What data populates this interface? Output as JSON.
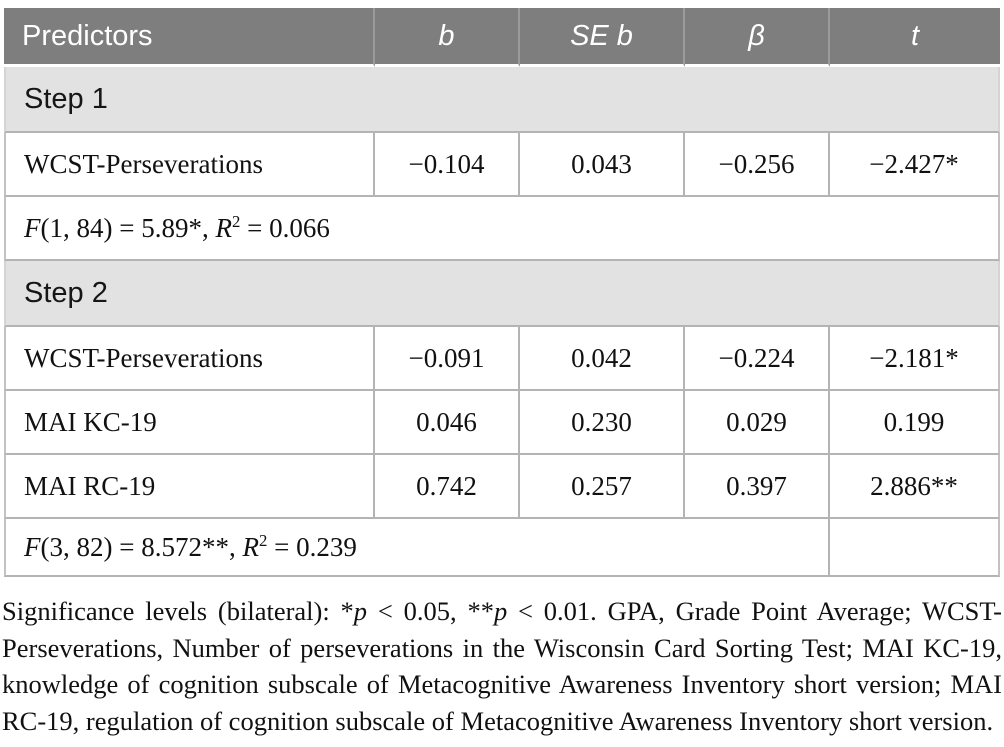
{
  "table": {
    "columns": [
      {
        "label": "Predictors"
      },
      {
        "label": "b"
      },
      {
        "label": "SE b"
      },
      {
        "label": "β"
      },
      {
        "label": "t"
      }
    ],
    "sections": [
      {
        "title": "Step 1",
        "rows": [
          {
            "predictor": "WCST-Perseverations",
            "b": "−0.104",
            "se_b": "0.043",
            "beta": "−0.256",
            "t": "−2.427*"
          }
        ],
        "model_fit": [
          {
            "t": "F",
            "i": true
          },
          {
            "t": "(1, 84) = 5.89*, "
          },
          {
            "t": "R",
            "i": true
          },
          {
            "t": "2",
            "sup": true
          },
          {
            "t": " = 0.066"
          }
        ]
      },
      {
        "title": "Step 2",
        "rows": [
          {
            "predictor": "WCST-Perseverations",
            "b": "−0.091",
            "se_b": "0.042",
            "beta": "−0.224",
            "t": "−2.181*"
          },
          {
            "predictor": "MAI KC-19",
            "b": "0.046",
            "se_b": "0.230",
            "beta": "0.029",
            "t": "0.199"
          },
          {
            "predictor": "MAI RC-19",
            "b": "0.742",
            "se_b": "0.257",
            "beta": "0.397",
            "t": "2.886**"
          }
        ],
        "model_fit": [
          {
            "t": "F",
            "i": true
          },
          {
            "t": "(3, 82) = 8.572**, "
          },
          {
            "t": "R",
            "i": true
          },
          {
            "t": "2",
            "sup": true
          },
          {
            "t": " = 0.239"
          }
        ]
      }
    ]
  },
  "footnote": {
    "segments": [
      {
        "t": "Significance levels (bilateral): *"
      },
      {
        "t": "p",
        "i": true
      },
      {
        "t": " < 0.05, **"
      },
      {
        "t": "p",
        "i": true
      },
      {
        "t": " < 0.01. GPA, Grade Point Average; WCST-Perseverations, Number of perseverations in the Wisconsin Card Sorting Test; MAI KC-19, knowledge of cognition subscale of Metacognitive Awareness Inventory short version; MAI RC-19, regulation of cognition subscale of Metacognitive Awareness Inventory short version."
      }
    ]
  },
  "colors": {
    "header_bg": "#7e7e7e",
    "header_text": "#ffffff",
    "section_bg": "#e2e2e2",
    "border": "#b4b4b4"
  }
}
